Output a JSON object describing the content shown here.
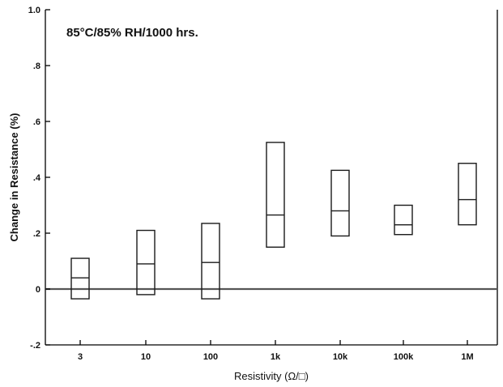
{
  "chart_data": {
    "type": "box",
    "title": "85°C/85% RH/1000 hrs.",
    "xlabel": "Resistivity (Ω/□)",
    "ylabel": "Change in Resistance (%)",
    "ylim": [
      -0.2,
      1.0
    ],
    "yticks": [
      -0.2,
      0,
      0.2,
      0.4,
      0.6,
      0.8,
      1.0
    ],
    "ytick_labels": [
      "-.2",
      "0",
      ".2",
      ".4",
      ".6",
      ".8",
      "1.0"
    ],
    "categories": [
      "3",
      "10",
      "100",
      "1k",
      "10k",
      "100k",
      "1M"
    ],
    "series": [
      {
        "low": [
          -0.035,
          -0.02,
          -0.035,
          0.15,
          0.19,
          0.195,
          0.23
        ],
        "median": [
          0.04,
          0.09,
          0.095,
          0.265,
          0.28,
          0.23,
          0.32
        ],
        "high": [
          0.11,
          0.21,
          0.235,
          0.525,
          0.425,
          0.3,
          0.45
        ]
      }
    ],
    "grid": false,
    "reference_line_y": 0
  }
}
